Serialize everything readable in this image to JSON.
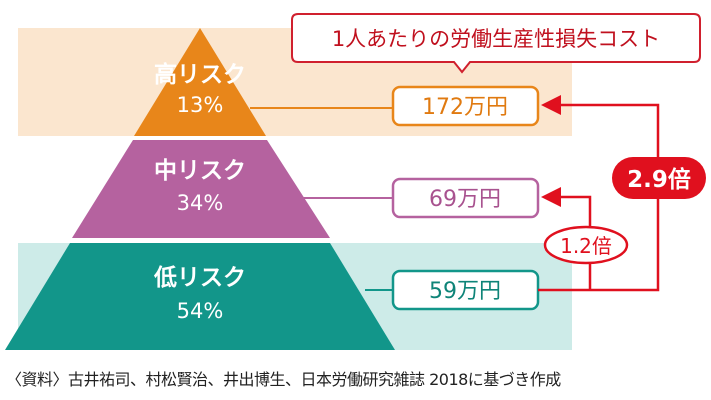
{
  "callout": "1人あたりの労働生産性損失コスト",
  "tiers": [
    {
      "name": "高リスク",
      "percent": "13%",
      "cost": "172万円",
      "color": "#e8861a",
      "band": "#fbe6cf"
    },
    {
      "name": "中リスク",
      "percent": "34%",
      "cost": "69万円",
      "color": "#b5629f",
      "band": ""
    },
    {
      "name": "低リスク",
      "percent": "54%",
      "cost": "59万円",
      "color": "#12968a",
      "band": "#cdebe8"
    }
  ],
  "ratios": {
    "high_vs_low": "2.9倍",
    "mid_vs_low": "1.2倍"
  },
  "accent": "#e0101e",
  "source": "〈資料〉古井祐司、村松賢治、井出博生、日本労働研究雑誌 2018に基づき作成"
}
